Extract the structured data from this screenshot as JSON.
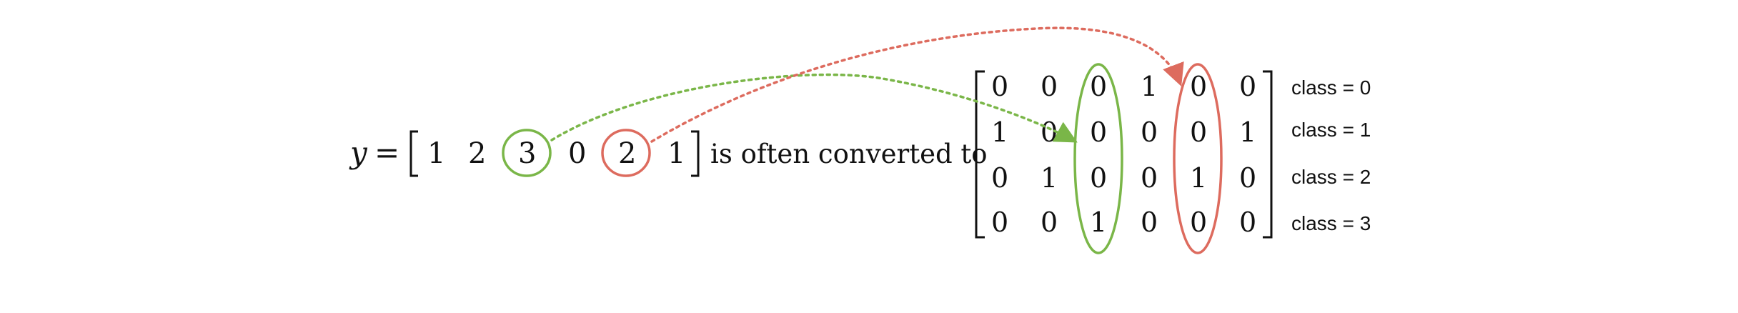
{
  "vector": {
    "var": "y",
    "equals": "=",
    "values": [
      "1",
      "2",
      "3",
      "0",
      "2",
      "1"
    ]
  },
  "phrase": "is often converted to",
  "matrix": {
    "rows": [
      [
        "0",
        "0",
        "0",
        "1",
        "0",
        "0"
      ],
      [
        "1",
        "0",
        "0",
        "0",
        "0",
        "1"
      ],
      [
        "0",
        "1",
        "0",
        "0",
        "1",
        "0"
      ],
      [
        "0",
        "0",
        "1",
        "0",
        "0",
        "0"
      ]
    ]
  },
  "class_labels": [
    "class = 0",
    "class = 1",
    "class = 2",
    "class = 3"
  ],
  "colors": {
    "green": "#7ab648",
    "red": "#dd6b5e",
    "text": "#111111"
  }
}
